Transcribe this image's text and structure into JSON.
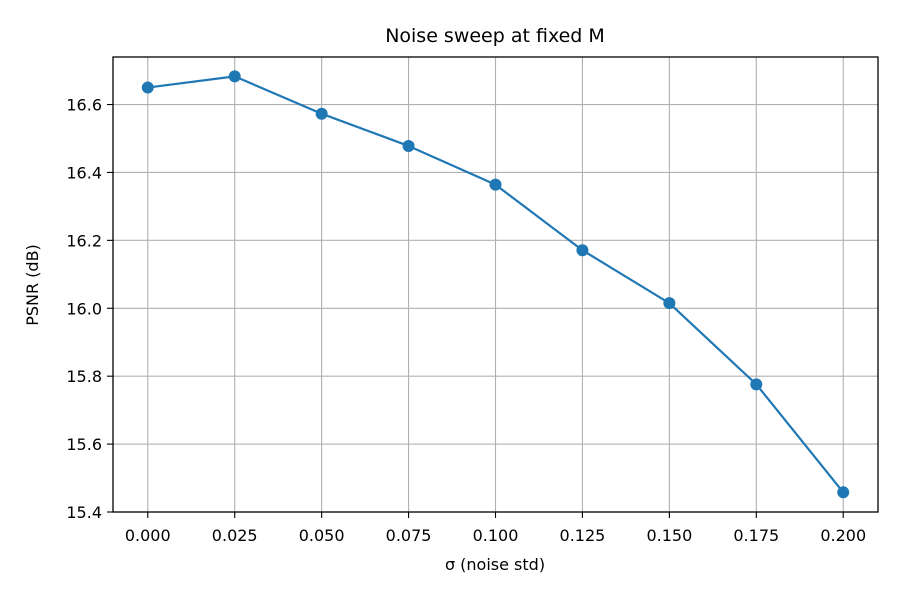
{
  "chart_data": {
    "type": "line",
    "title": "Noise sweep at fixed M",
    "xlabel": "σ (noise std)",
    "ylabel": "PSNR (dB)",
    "xlim": [
      -0.01,
      0.21
    ],
    "ylim": [
      15.4,
      16.74
    ],
    "x_ticks": [
      "0.000",
      "0.025",
      "0.050",
      "0.075",
      "0.100",
      "0.125",
      "0.150",
      "0.175",
      "0.200"
    ],
    "y_ticks": [
      "15.4",
      "15.6",
      "15.8",
      "16.0",
      "16.2",
      "16.4",
      "16.6"
    ],
    "grid": true,
    "series": [
      {
        "color": "#1f77b4",
        "marker": "circle",
        "x": [
          0.0,
          0.025,
          0.05,
          0.075,
          0.1,
          0.125,
          0.15,
          0.175,
          0.2
        ],
        "y": [
          16.65,
          16.683,
          16.573,
          16.478,
          16.364,
          16.171,
          16.015,
          15.776,
          15.458
        ]
      }
    ]
  }
}
